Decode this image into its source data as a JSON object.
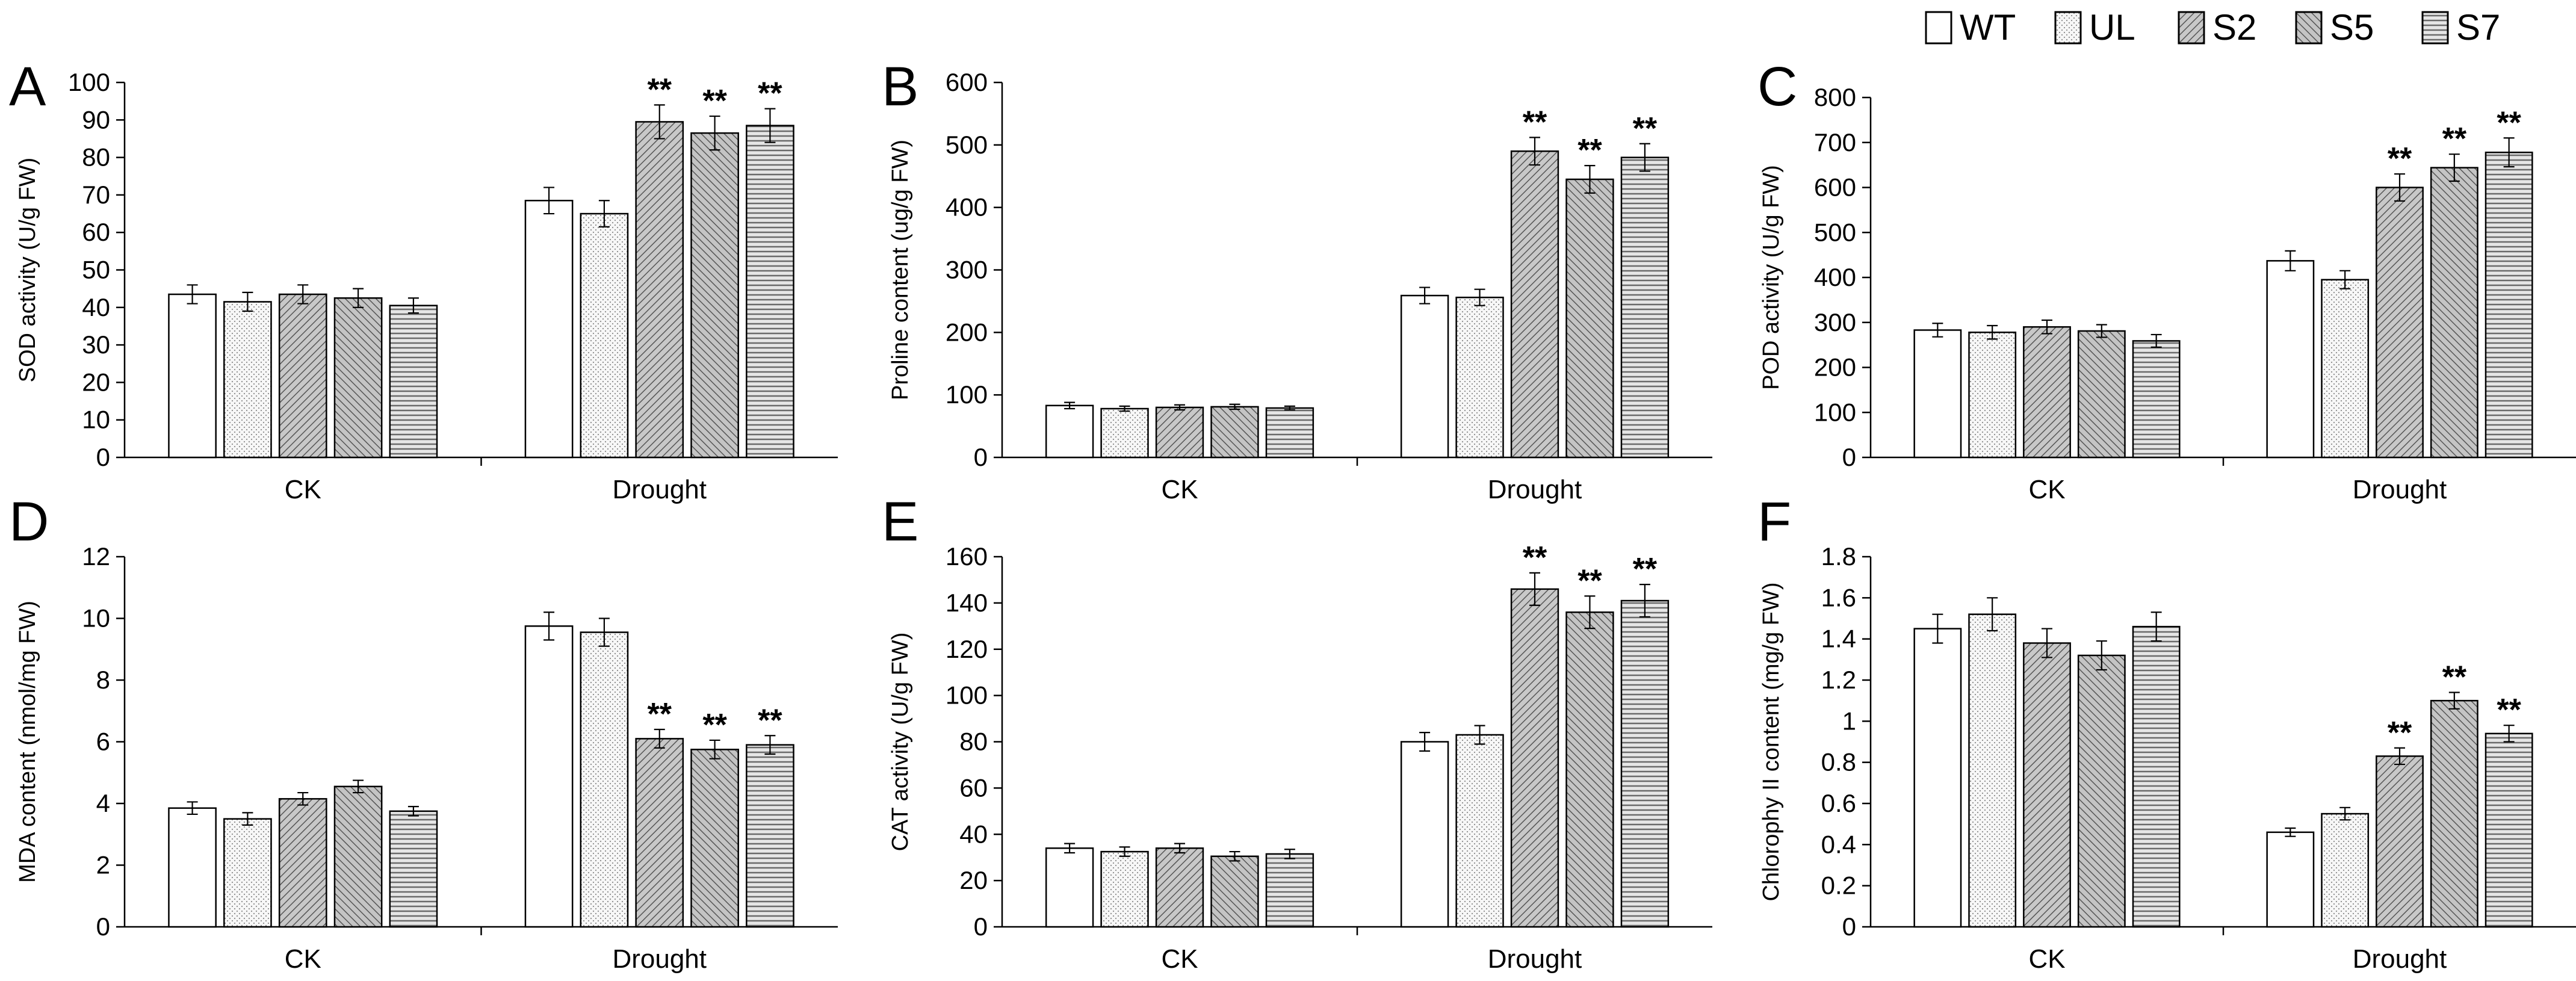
{
  "legend": {
    "items": [
      {
        "label": "WT",
        "pattern": "pat-wt"
      },
      {
        "label": "UL",
        "pattern": "pat-ul"
      },
      {
        "label": "S2",
        "pattern": "pat-s2"
      },
      {
        "label": "S5",
        "pattern": "pat-s5"
      },
      {
        "label": "S7",
        "pattern": "pat-s7"
      }
    ]
  },
  "chart_data": [
    {
      "id": "A",
      "panel": "A",
      "type": "bar",
      "ylabel": "SOD activity (U/g FW)",
      "ylim": [
        0,
        100
      ],
      "yticks": [
        0,
        10,
        20,
        30,
        40,
        50,
        60,
        70,
        80,
        90,
        100
      ],
      "categories": [
        "CK",
        "Drought"
      ],
      "series": [
        {
          "name": "WT",
          "values": [
            43.5,
            68.5
          ],
          "errors": [
            2.5,
            3.5
          ]
        },
        {
          "name": "UL",
          "values": [
            41.5,
            65
          ],
          "errors": [
            2.5,
            3.5
          ]
        },
        {
          "name": "S2",
          "values": [
            43.5,
            89.5
          ],
          "errors": [
            2.5,
            4.5
          ]
        },
        {
          "name": "S5",
          "values": [
            42.5,
            86.5
          ],
          "errors": [
            2.5,
            4.5
          ]
        },
        {
          "name": "S7",
          "values": [
            40.5,
            88.5
          ],
          "errors": [
            2.0,
            4.5
          ]
        }
      ],
      "significance": [
        [
          null,
          null
        ],
        [
          null,
          null
        ],
        [
          null,
          "**"
        ],
        [
          null,
          "**"
        ],
        [
          null,
          "**"
        ]
      ]
    },
    {
      "id": "B",
      "panel": "B",
      "type": "bar",
      "ylabel": "Proline content (ug/g FW)",
      "ylim": [
        0,
        600
      ],
      "yticks": [
        0,
        100,
        200,
        300,
        400,
        500,
        600
      ],
      "categories": [
        "CK",
        "Drought"
      ],
      "series": [
        {
          "name": "WT",
          "values": [
            83,
            259
          ],
          "errors": [
            5,
            13
          ]
        },
        {
          "name": "UL",
          "values": [
            78,
            256
          ],
          "errors": [
            4,
            13
          ]
        },
        {
          "name": "S2",
          "values": [
            80,
            490
          ],
          "errors": [
            4,
            22
          ]
        },
        {
          "name": "S5",
          "values": [
            81,
            445
          ],
          "errors": [
            4,
            22
          ]
        },
        {
          "name": "S7",
          "values": [
            79,
            480
          ],
          "errors": [
            3,
            22
          ]
        }
      ],
      "significance": [
        [
          null,
          null
        ],
        [
          null,
          null
        ],
        [
          null,
          "**"
        ],
        [
          null,
          "**"
        ],
        [
          null,
          "**"
        ]
      ]
    },
    {
      "id": "C",
      "panel": "C",
      "type": "bar",
      "ylabel": "POD activity (U/g FW)",
      "ylim": [
        0,
        800
      ],
      "yticks": [
        0,
        100,
        200,
        300,
        400,
        500,
        600,
        700,
        800
      ],
      "categories": [
        "CK",
        "Drought"
      ],
      "series": [
        {
          "name": "WT",
          "values": [
            283,
            437
          ],
          "errors": [
            15,
            22
          ]
        },
        {
          "name": "UL",
          "values": [
            278,
            395
          ],
          "errors": [
            15,
            20
          ]
        },
        {
          "name": "S2",
          "values": [
            290,
            600
          ],
          "errors": [
            15,
            30
          ]
        },
        {
          "name": "S5",
          "values": [
            281,
            644
          ],
          "errors": [
            14,
            30
          ]
        },
        {
          "name": "S7",
          "values": [
            259,
            678
          ],
          "errors": [
            14,
            32
          ]
        }
      ],
      "significance": [
        [
          null,
          null
        ],
        [
          null,
          null
        ],
        [
          null,
          "**"
        ],
        [
          null,
          "**"
        ],
        [
          null,
          "**"
        ]
      ]
    },
    {
      "id": "D",
      "panel": "D",
      "type": "bar",
      "ylabel": "MDA content (nmol/mg FW)",
      "ylim": [
        0,
        12
      ],
      "yticks": [
        0,
        2,
        4,
        6,
        8,
        10,
        12
      ],
      "categories": [
        "CK",
        "Drought"
      ],
      "series": [
        {
          "name": "WT",
          "values": [
            3.85,
            9.75
          ],
          "errors": [
            0.2,
            0.45
          ]
        },
        {
          "name": "UL",
          "values": [
            3.5,
            9.55
          ],
          "errors": [
            0.2,
            0.45
          ]
        },
        {
          "name": "S2",
          "values": [
            4.15,
            6.1
          ],
          "errors": [
            0.2,
            0.3
          ]
        },
        {
          "name": "S5",
          "values": [
            4.55,
            5.75
          ],
          "errors": [
            0.2,
            0.3
          ]
        },
        {
          "name": "S7",
          "values": [
            3.75,
            5.9
          ],
          "errors": [
            0.15,
            0.3
          ]
        }
      ],
      "significance": [
        [
          null,
          null
        ],
        [
          null,
          null
        ],
        [
          null,
          "**"
        ],
        [
          null,
          "**"
        ],
        [
          null,
          "**"
        ]
      ]
    },
    {
      "id": "E",
      "panel": "E",
      "type": "bar",
      "ylabel": "CAT activity (U/g FW)",
      "ylim": [
        0,
        160
      ],
      "yticks": [
        0,
        20,
        40,
        60,
        80,
        100,
        120,
        140,
        160
      ],
      "categories": [
        "CK",
        "Drought"
      ],
      "series": [
        {
          "name": "WT",
          "values": [
            34,
            80
          ],
          "errors": [
            2,
            4
          ]
        },
        {
          "name": "UL",
          "values": [
            32.5,
            83
          ],
          "errors": [
            2,
            4
          ]
        },
        {
          "name": "S2",
          "values": [
            34,
            146
          ],
          "errors": [
            2,
            7
          ]
        },
        {
          "name": "S5",
          "values": [
            30.5,
            136
          ],
          "errors": [
            2,
            7
          ]
        },
        {
          "name": "S7",
          "values": [
            31.5,
            141
          ],
          "errors": [
            2,
            7
          ]
        }
      ],
      "significance": [
        [
          null,
          null
        ],
        [
          null,
          null
        ],
        [
          null,
          "**"
        ],
        [
          null,
          "**"
        ],
        [
          null,
          "**"
        ]
      ]
    },
    {
      "id": "F",
      "panel": "F",
      "type": "bar",
      "ylabel": "Chlorophy II content (mg/g FW)",
      "ylim": [
        0,
        1.8
      ],
      "yticks": [
        "0",
        "0.2",
        "0.4",
        "0.6",
        "0.8",
        "1",
        "1.2",
        "1.4",
        "1.6",
        "1.8"
      ],
      "categories": [
        "CK",
        "Drought"
      ],
      "series": [
        {
          "name": "WT",
          "values": [
            1.45,
            0.46
          ],
          "errors": [
            0.07,
            0.02
          ]
        },
        {
          "name": "UL",
          "values": [
            1.52,
            0.55
          ],
          "errors": [
            0.08,
            0.03
          ]
        },
        {
          "name": "S2",
          "values": [
            1.38,
            0.83
          ],
          "errors": [
            0.07,
            0.04
          ]
        },
        {
          "name": "S5",
          "values": [
            1.32,
            1.1
          ],
          "errors": [
            0.07,
            0.04
          ]
        },
        {
          "name": "S7",
          "values": [
            1.46,
            0.94
          ],
          "errors": [
            0.07,
            0.04
          ]
        }
      ],
      "significance": [
        [
          null,
          null
        ],
        [
          null,
          null
        ],
        [
          null,
          "**"
        ],
        [
          null,
          "**"
        ],
        [
          null,
          "**"
        ]
      ]
    }
  ]
}
